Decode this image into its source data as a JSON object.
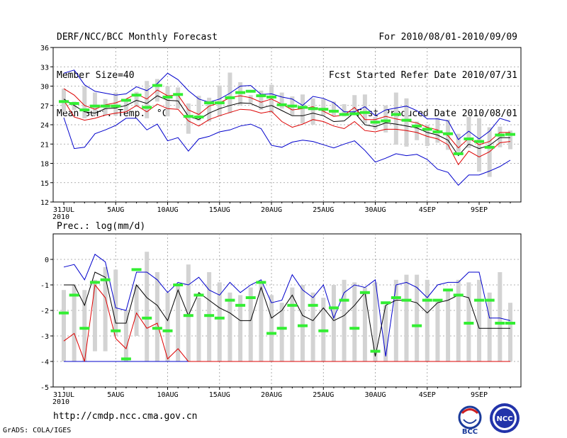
{
  "header": {
    "title": "DERF/NCC/BCC Monthly Forecast",
    "member_size": "Member Size=40",
    "variable": "Mean Surf. Temp.: °C",
    "period": "For 2010/08/01-2010/09/09",
    "started": "Fcst Started Refer Date 2010/07/31",
    "produced": "Fcst Produced Date 2010/08/01"
  },
  "footer": {
    "url": "http://cmdp.ncc.cma.gov.cn",
    "grads": "GrADS: COLA/IGES",
    "logo_bcc": "BCC",
    "logo_ncc": "NCC"
  },
  "colors": {
    "box": "#d3d3d3",
    "median": "#33ee33",
    "outer": "#0000cc",
    "inner": "#dd0000",
    "mean": "#000000",
    "grid": "#999999"
  },
  "chart_data": [
    {
      "type": "box",
      "title": "Mean Surf. Temp.: °C",
      "x_tick_labels": [
        "31JUL",
        "5AUG",
        "10AUG",
        "15AUG",
        "20AUG",
        "25AUG",
        "30AUG",
        "4SEP",
        "9SEP"
      ],
      "x_year_label": "2010",
      "ylim": [
        12,
        36
      ],
      "yticks": [
        12,
        15,
        18,
        21,
        24,
        27,
        30,
        33,
        36
      ],
      "box_low": [
        26.0,
        26.3,
        25.0,
        25.4,
        25.5,
        25.4,
        26.0,
        26.8,
        25.0,
        27.6,
        25.3,
        26.5,
        22.6,
        24.6,
        24.5,
        25.3,
        25.8,
        27.0,
        27.4,
        26.3,
        25.8,
        26.5,
        25.5,
        24.2,
        24.0,
        25.4,
        25.4,
        25.3,
        25.5,
        24.2,
        23.3,
        22.8,
        20.9,
        20.6,
        21.6,
        20.7,
        21.2,
        20.1,
        19.8,
        20.4,
        16.7,
        15.9,
        20.5,
        20.2
      ],
      "box_high": [
        29.6,
        27.6,
        30.0,
        29.0,
        28.0,
        29.0,
        28.0,
        29.1,
        30.8,
        31.1,
        30.0,
        29.8,
        27.3,
        28.5,
        28.2,
        30.1,
        32.1,
        30.6,
        28.6,
        29.3,
        30.2,
        29.0,
        28.4,
        28.7,
        28.1,
        28.0,
        27.6,
        27.2,
        28.6,
        28.7,
        25.2,
        27.0,
        29.0,
        28.1,
        24.5,
        24.0,
        25.1,
        24.8,
        22.6,
        25.2,
        25.0,
        23.6,
        23.7,
        23.1
      ],
      "median": [
        27.6,
        27.3,
        26.3,
        26.9,
        26.9,
        26.9,
        27.8,
        28.6,
        26.7,
        30.1,
        28.3,
        28.7,
        25.3,
        25.2,
        27.4,
        27.4,
        28.2,
        29.0,
        29.2,
        28.5,
        28.3,
        27.1,
        26.9,
        26.7,
        26.5,
        26.4,
        26.1,
        25.6,
        25.7,
        25.9,
        24.4,
        24.6,
        25.6,
        24.7,
        23.8,
        23.3,
        22.9,
        22.6,
        19.5,
        21.8,
        21.4,
        20.5,
        22.4,
        22.5
      ],
      "max_line": [
        32.0,
        32.5,
        30.2,
        29.2,
        28.9,
        28.6,
        28.8,
        29.9,
        29.3,
        30.4,
        32.0,
        31.0,
        29.3,
        28.0,
        27.5,
        28.0,
        28.9,
        30.0,
        30.1,
        28.7,
        28.8,
        28.3,
        28.0,
        27.0,
        28.4,
        28.1,
        27.4,
        26.0,
        26.0,
        26.8,
        25.4,
        26.3,
        26.6,
        26.9,
        26.2,
        24.9,
        24.9,
        24.6,
        21.7,
        23.0,
        21.8,
        23.0,
        25.0,
        24.5
      ],
      "upper": [
        29.6,
        28.6,
        27.0,
        26.4,
        27.1,
        27.4,
        28.0,
        28.8,
        28.0,
        29.4,
        28.5,
        28.6,
        26.3,
        25.6,
        26.9,
        27.4,
        28.2,
        28.5,
        28.2,
        27.5,
        28.0,
        27.2,
        26.3,
        26.5,
        26.8,
        26.1,
        25.3,
        25.5,
        26.7,
        24.8,
        24.8,
        25.3,
        24.9,
        24.6,
        24.3,
        23.6,
        23.2,
        22.3,
        20.4,
        21.9,
        20.9,
        21.4,
        22.8,
        22.8
      ],
      "mean": [
        28.0,
        27.0,
        26.0,
        25.8,
        26.5,
        26.6,
        27.0,
        27.8,
        27.3,
        28.5,
        27.8,
        27.7,
        25.3,
        24.8,
        25.8,
        26.5,
        27.0,
        27.4,
        27.3,
        26.6,
        27.0,
        26.2,
        25.4,
        25.4,
        25.8,
        25.4,
        24.5,
        24.6,
        25.9,
        24.0,
        23.7,
        24.3,
        24.1,
        23.8,
        23.5,
        22.8,
        22.4,
        21.6,
        19.2,
        21.0,
        20.3,
        20.8,
        22.0,
        22.0
      ],
      "lower": [
        27.8,
        25.2,
        24.7,
        25.0,
        25.5,
        25.8,
        26.0,
        27.0,
        26.0,
        27.2,
        26.5,
        26.4,
        24.6,
        23.8,
        24.8,
        25.4,
        25.9,
        26.4,
        26.3,
        25.8,
        26.1,
        24.5,
        23.6,
        24.1,
        24.8,
        24.5,
        23.8,
        23.4,
        24.5,
        23.1,
        22.9,
        23.3,
        23.3,
        23.1,
        22.8,
        22.2,
        21.8,
        20.9,
        17.8,
        19.9,
        19.0,
        19.8,
        21.2,
        21.4
      ],
      "min_line": [
        25.1,
        20.3,
        20.5,
        22.6,
        23.2,
        23.9,
        25.0,
        25.0,
        23.2,
        24.1,
        21.5,
        22.0,
        19.9,
        21.8,
        22.2,
        22.9,
        23.2,
        23.8,
        24.1,
        23.4,
        20.8,
        20.5,
        21.3,
        21.6,
        21.4,
        20.9,
        20.4,
        21.0,
        21.5,
        20.0,
        18.2,
        18.8,
        19.5,
        19.2,
        19.4,
        18.6,
        17.1,
        16.6,
        14.6,
        16.2,
        16.2,
        16.8,
        17.5,
        18.5
      ]
    },
    {
      "type": "box",
      "title": "Prec.: log(mm/d)",
      "x_tick_labels": [
        "31JUL",
        "5AUG",
        "10AUG",
        "15AUG",
        "20AUG",
        "25AUG",
        "30AUG",
        "4SEP",
        "9SEP"
      ],
      "x_year_label": "2010",
      "ylim": [
        -5,
        1
      ],
      "yticks": [
        -5,
        -4,
        -3,
        -2,
        -1,
        0
      ],
      "box_low": [
        -4.0,
        -4.0,
        -4.0,
        -3.6,
        -3.6,
        -3.0,
        -4.0,
        -3.0,
        -4.0,
        -4.0,
        -4.0,
        -4.0,
        -4.0,
        -4.0,
        -4.0,
        -4.0,
        -4.0,
        -4.0,
        -4.0,
        -4.0,
        -4.0,
        -4.0,
        -4.0,
        -4.0,
        -4.0,
        -4.0,
        -4.0,
        -4.0,
        -4.0,
        -4.0,
        -4.0,
        -4.0,
        -4.0,
        -4.0,
        -4.0,
        -4.0,
        -4.0,
        -4.0,
        -4.0,
        -4.0,
        -4.0,
        -4.0,
        -4.0,
        -4.0
      ],
      "box_high": [
        -1.2,
        -1.0,
        -1.2,
        -0.8,
        -0.3,
        -0.4,
        -2.0,
        -1.0,
        0.3,
        -0.5,
        -1.3,
        -1.0,
        -0.2,
        -1.5,
        -0.5,
        -0.9,
        -1.3,
        -1.4,
        -1.1,
        -0.9,
        -1.4,
        -1.7,
        -1.1,
        -1.0,
        -1.3,
        -1.5,
        -1.0,
        -0.8,
        -0.9,
        -1.1,
        -0.9,
        -1.8,
        -0.8,
        -0.6,
        -0.6,
        -0.8,
        -1.6,
        -1.2,
        -0.8,
        -0.9,
        -0.8,
        -1.3,
        -0.5,
        -1.7
      ],
      "median": [
        -2.1,
        -1.4,
        -2.7,
        -0.9,
        -0.8,
        -2.8,
        -3.9,
        -0.4,
        -2.3,
        -2.7,
        -2.8,
        -1.0,
        -2.2,
        -1.4,
        -2.2,
        -2.3,
        -1.6,
        -1.8,
        -1.5,
        -0.9,
        -2.9,
        -2.7,
        -1.8,
        -2.6,
        -1.8,
        -2.8,
        -1.9,
        -1.6,
        -2.7,
        -1.3,
        -3.6,
        -1.7,
        -1.5,
        -1.6,
        -2.6,
        -1.6,
        -1.6,
        -1.2,
        -1.4,
        -2.5,
        -1.6,
        -1.6,
        -2.5,
        -2.5
      ],
      "max_line": [
        -0.3,
        -0.2,
        -0.8,
        0.2,
        -0.1,
        -1.9,
        -2.0,
        -0.5,
        -0.5,
        -0.8,
        -1.3,
        -0.9,
        -1.0,
        -0.7,
        -1.2,
        -1.4,
        -0.9,
        -1.3,
        -1.0,
        -0.8,
        -1.7,
        -1.6,
        -0.6,
        -1.2,
        -1.5,
        -1.0,
        -2.3,
        -1.3,
        -1.0,
        -1.1,
        -0.8,
        -3.8,
        -1.0,
        -0.9,
        -1.1,
        -1.5,
        -1.0,
        -0.9,
        -0.9,
        -0.5,
        -0.5,
        -2.3,
        -2.3,
        -2.4
      ],
      "mean": [
        -1.0,
        -1.0,
        -1.8,
        -0.5,
        -0.7,
        -2.5,
        -2.5,
        -1.0,
        -1.5,
        -1.8,
        -2.4,
        -1.2,
        -2.2,
        -1.3,
        -1.6,
        -1.9,
        -2.1,
        -2.4,
        -2.4,
        -1.1,
        -2.3,
        -2.0,
        -1.4,
        -2.2,
        -2.4,
        -1.9,
        -2.4,
        -2.2,
        -1.8,
        -1.3,
        -3.8,
        -1.8,
        -1.6,
        -1.6,
        -1.7,
        -2.1,
        -1.7,
        -1.6,
        -1.4,
        -1.5,
        -2.7,
        -2.7,
        -2.7,
        -2.7
      ],
      "lower": [
        -3.2,
        -2.9,
        -4.0,
        -1.0,
        -1.5,
        -3.1,
        -3.5,
        -2.1,
        -2.7,
        -2.5,
        -3.9,
        -3.5,
        -4.0,
        -4.0,
        -4.0,
        -4.0,
        -4.0,
        -4.0,
        -4.0,
        -4.0,
        -4.0,
        -4.0,
        -4.0,
        -4.0,
        -4.0,
        -4.0,
        -4.0,
        -4.0,
        -4.0,
        -4.0,
        -4.0,
        -4.0,
        -4.0,
        -4.0,
        -4.0,
        -4.0,
        -4.0,
        -4.0,
        -4.0,
        -4.0,
        -4.0,
        -4.0,
        -4.0,
        -4.0
      ],
      "min_line": [
        -4.0,
        -4.0,
        -4.0,
        -4.0,
        -4.0,
        -4.0,
        -4.0,
        -4.0,
        -4.0,
        -4.0,
        -4.0,
        -4.0,
        -4.0,
        -4.0,
        -4.0,
        -4.0,
        -4.0,
        -4.0,
        -4.0,
        -4.0,
        -4.0,
        -4.0,
        -4.0,
        -4.0,
        -4.0,
        -4.0,
        -4.0,
        -4.0,
        -4.0,
        -4.0,
        -4.0,
        -4.0,
        -4.0,
        -4.0,
        -4.0,
        -4.0,
        -4.0,
        -4.0,
        -4.0,
        -4.0,
        -4.0,
        -4.0,
        -4.0,
        -4.0
      ]
    }
  ]
}
